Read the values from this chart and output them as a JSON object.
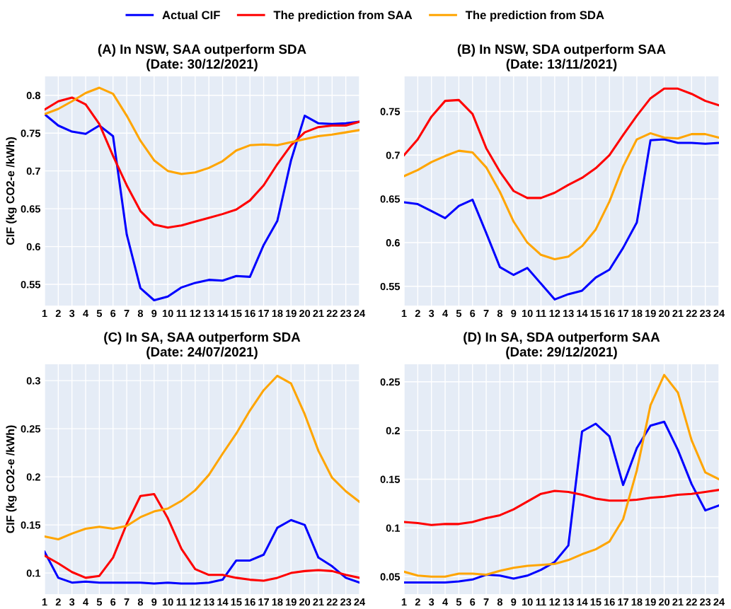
{
  "chart_data": [
    {
      "type": "line",
      "title": "(A) In NSW, SAA outperform SDA\n(Date: 30/12/2021)",
      "ylabel": "CIF (kg CO2-e /kWh)",
      "legend": "top",
      "grid": true,
      "line_style": "solid",
      "x": [
        1,
        2,
        3,
        4,
        5,
        6,
        7,
        8,
        9,
        10,
        11,
        12,
        13,
        14,
        15,
        16,
        17,
        18,
        19,
        20,
        21,
        22,
        23,
        24
      ],
      "xlim": [
        1,
        24
      ],
      "xticks": [
        1,
        2,
        3,
        4,
        5,
        6,
        7,
        8,
        9,
        10,
        11,
        12,
        13,
        14,
        15,
        16,
        17,
        18,
        19,
        20,
        21,
        22,
        23,
        24
      ],
      "ylim": [
        0.522,
        0.825
      ],
      "yticks": [
        0.55,
        0.6,
        0.65,
        0.7,
        0.75,
        0.8
      ],
      "series": [
        {
          "name": "Actual CIF",
          "color": "#0000ff",
          "values": [
            0.775,
            0.76,
            0.752,
            0.749,
            0.76,
            0.746,
            0.616,
            0.545,
            0.529,
            0.534,
            0.546,
            0.552,
            0.556,
            0.555,
            0.561,
            0.56,
            0.602,
            0.634,
            0.714,
            0.773,
            0.763,
            0.762,
            0.763,
            0.765
          ]
        },
        {
          "name": "The prediction from SAA",
          "color": "#ff0000",
          "values": [
            0.781,
            0.792,
            0.797,
            0.788,
            0.762,
            0.72,
            0.681,
            0.647,
            0.629,
            0.625,
            0.628,
            0.633,
            0.638,
            0.643,
            0.649,
            0.661,
            0.681,
            0.709,
            0.734,
            0.751,
            0.758,
            0.76,
            0.76,
            0.765
          ]
        },
        {
          "name": "The prediction from SDA",
          "color": "#ffa500",
          "values": [
            0.775,
            0.782,
            0.792,
            0.803,
            0.81,
            0.802,
            0.773,
            0.74,
            0.714,
            0.7,
            0.696,
            0.698,
            0.704,
            0.713,
            0.727,
            0.734,
            0.735,
            0.734,
            0.738,
            0.742,
            0.746,
            0.748,
            0.751,
            0.754
          ]
        }
      ]
    },
    {
      "type": "line",
      "title": "(B) In NSW, SDA outperform SAA\n(Date: 13/11/2021)",
      "grid": true,
      "line_style": "solid",
      "x": [
        1,
        2,
        3,
        4,
        5,
        6,
        7,
        8,
        9,
        10,
        11,
        12,
        13,
        14,
        15,
        16,
        17,
        18,
        19,
        20,
        21,
        22,
        23,
        24
      ],
      "xlim": [
        1,
        24
      ],
      "xticks": [
        1,
        2,
        3,
        4,
        5,
        6,
        7,
        8,
        9,
        10,
        11,
        12,
        13,
        14,
        15,
        16,
        17,
        18,
        19,
        20,
        21,
        22,
        23,
        24
      ],
      "ylim": [
        0.528,
        0.79
      ],
      "yticks": [
        0.55,
        0.6,
        0.65,
        0.7,
        0.75
      ],
      "series": [
        {
          "color": "#0000ff",
          "values": [
            0.646,
            0.644,
            0.636,
            0.628,
            0.642,
            0.649,
            0.611,
            0.572,
            0.563,
            0.571,
            0.553,
            0.535,
            0.541,
            0.545,
            0.56,
            0.569,
            0.594,
            0.623,
            0.717,
            0.718,
            0.714,
            0.714,
            0.713,
            0.714
          ]
        },
        {
          "color": "#ff0000",
          "values": [
            0.7,
            0.718,
            0.744,
            0.762,
            0.763,
            0.747,
            0.708,
            0.681,
            0.659,
            0.651,
            0.651,
            0.657,
            0.666,
            0.674,
            0.685,
            0.7,
            0.723,
            0.745,
            0.765,
            0.776,
            0.776,
            0.77,
            0.762,
            0.757
          ]
        },
        {
          "color": "#ffa500",
          "values": [
            0.676,
            0.683,
            0.692,
            0.699,
            0.705,
            0.703,
            0.686,
            0.658,
            0.624,
            0.6,
            0.586,
            0.581,
            0.584,
            0.596,
            0.615,
            0.647,
            0.687,
            0.718,
            0.725,
            0.72,
            0.719,
            0.724,
            0.724,
            0.72
          ]
        }
      ]
    },
    {
      "type": "line",
      "title": "(C) In SA, SAA outperform SDA\n(Date: 24/07/2021)",
      "ylabel": "CIF (kg CO2-e /kWh)",
      "grid": true,
      "line_style": "solid",
      "x": [
        1,
        2,
        3,
        4,
        5,
        6,
        7,
        8,
        9,
        10,
        11,
        12,
        13,
        14,
        15,
        16,
        17,
        18,
        19,
        20,
        21,
        22,
        23,
        24
      ],
      "xlim": [
        1,
        24
      ],
      "xticks": [
        1,
        2,
        3,
        4,
        5,
        6,
        7,
        8,
        9,
        10,
        11,
        12,
        13,
        14,
        15,
        16,
        17,
        18,
        19,
        20,
        21,
        22,
        23,
        24
      ],
      "ylim": [
        0.078,
        0.317
      ],
      "yticks": [
        0.1,
        0.15,
        0.2,
        0.25,
        0.3
      ],
      "series": [
        {
          "color": "#0000ff",
          "values": [
            0.122,
            0.095,
            0.09,
            0.091,
            0.09,
            0.09,
            0.09,
            0.09,
            0.089,
            0.09,
            0.089,
            0.089,
            0.09,
            0.093,
            0.113,
            0.113,
            0.119,
            0.147,
            0.155,
            0.15,
            0.116,
            0.107,
            0.095,
            0.09
          ]
        },
        {
          "color": "#ff0000",
          "values": [
            0.118,
            0.11,
            0.101,
            0.095,
            0.097,
            0.116,
            0.151,
            0.18,
            0.182,
            0.157,
            0.125,
            0.104,
            0.098,
            0.098,
            0.095,
            0.093,
            0.092,
            0.095,
            0.1,
            0.102,
            0.103,
            0.102,
            0.098,
            0.095
          ]
        },
        {
          "color": "#ffa500",
          "values": [
            0.138,
            0.135,
            0.141,
            0.146,
            0.148,
            0.146,
            0.149,
            0.158,
            0.164,
            0.167,
            0.175,
            0.186,
            0.202,
            0.224,
            0.245,
            0.269,
            0.29,
            0.305,
            0.297,
            0.265,
            0.227,
            0.199,
            0.185,
            0.174
          ]
        }
      ]
    },
    {
      "type": "line",
      "title": "(D) In SA, SDA outperform SAA\n(Date: 29/12/2021)",
      "grid": true,
      "line_style": "solid",
      "x": [
        1,
        2,
        3,
        4,
        5,
        6,
        7,
        8,
        9,
        10,
        11,
        12,
        13,
        14,
        15,
        16,
        17,
        18,
        19,
        20,
        21,
        22,
        23,
        24
      ],
      "xlim": [
        1,
        24
      ],
      "xticks": [
        1,
        2,
        3,
        4,
        5,
        6,
        7,
        8,
        9,
        10,
        11,
        12,
        13,
        14,
        15,
        16,
        17,
        18,
        19,
        20,
        21,
        22,
        23,
        24
      ],
      "ylim": [
        0.032,
        0.268
      ],
      "yticks": [
        0.05,
        0.1,
        0.15,
        0.2,
        0.25
      ],
      "series": [
        {
          "color": "#0000ff",
          "values": [
            0.044,
            0.044,
            0.044,
            0.044,
            0.045,
            0.047,
            0.052,
            0.051,
            0.048,
            0.051,
            0.057,
            0.065,
            0.082,
            0.199,
            0.207,
            0.194,
            0.144,
            0.182,
            0.205,
            0.209,
            0.18,
            0.145,
            0.118,
            0.123
          ]
        },
        {
          "color": "#ff0000",
          "values": [
            0.106,
            0.105,
            0.103,
            0.104,
            0.104,
            0.106,
            0.11,
            0.113,
            0.119,
            0.127,
            0.135,
            0.138,
            0.137,
            0.134,
            0.13,
            0.128,
            0.128,
            0.129,
            0.131,
            0.132,
            0.134,
            0.135,
            0.137,
            0.139
          ]
        },
        {
          "color": "#ffa500",
          "values": [
            0.055,
            0.051,
            0.05,
            0.05,
            0.053,
            0.053,
            0.052,
            0.056,
            0.059,
            0.061,
            0.062,
            0.063,
            0.067,
            0.073,
            0.078,
            0.086,
            0.109,
            0.159,
            0.226,
            0.257,
            0.239,
            0.19,
            0.157,
            0.15
          ]
        }
      ]
    }
  ]
}
